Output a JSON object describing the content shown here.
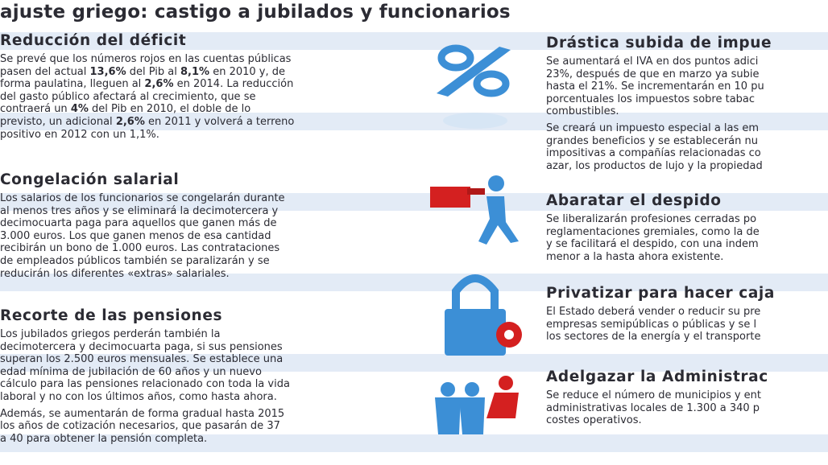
{
  "title": "ajuste griego: castigo a jubilados y funcionarios",
  "left": [
    {
      "heading": "Reducción del déficit",
      "paragraphs": [
        [
          [
            "Se prevé que los números rojos en las cuentas públicas"
          ],
          [
            "pasen del actual ",
            {
              "bold": "13,6%"
            },
            " del Pib al ",
            {
              "bold": "8,1%"
            },
            " en 2010 y, de"
          ],
          [
            "forma paulatina, lleguen al ",
            {
              "bold": "2,6%"
            },
            " en 2014. La reducción"
          ],
          [
            "del gasto público afectará al crecimiento, que se"
          ],
          [
            "contraerá un ",
            {
              "bold": "4%"
            },
            " del Pib en 2010, el doble de lo"
          ],
          [
            "previsto, un adicional ",
            {
              "bold": "2,6%"
            },
            " en 2011 y volverá a terreno"
          ],
          [
            "positivo en 2012 con un 1,1%."
          ]
        ]
      ]
    },
    {
      "heading": "Congelación salarial",
      "paragraphs": [
        [
          [
            "Los salarios de los funcionarios se congelarán durante"
          ],
          [
            "al menos tres años y se eliminará la decimotercera y"
          ],
          [
            "decimocuarta paga para aquellos que ganen más de"
          ],
          [
            "3.000 euros. Los que ganen menos de esa cantidad"
          ],
          [
            "recibirán un bono de 1.000 euros. Las contrataciones"
          ],
          [
            "de empleados públicos también se paralizarán y se"
          ],
          [
            "reducirán los diferentes «extras» salariales."
          ]
        ]
      ]
    },
    {
      "heading": "Recorte de las pensiones",
      "paragraphs": [
        [
          [
            "Los jubilados griegos perderán también la"
          ],
          [
            "decimotercera y decimocuarta paga, si sus pensiones"
          ],
          [
            "superan los 2.500 euros mensuales. Se establece una"
          ],
          [
            "edad mínima de jubilación de 60 años y un nuevo"
          ],
          [
            "cálculo para las pensiones relacionado con toda la vida"
          ],
          [
            "laboral y no con los últimos años, como hasta ahora."
          ]
        ],
        [
          [
            "Además, se aumentarán de forma gradual hasta 2015"
          ],
          [
            "los años de cotización necesarios, que pasarán de 37"
          ],
          [
            "a 40 para obtener la pensión completa."
          ]
        ]
      ]
    }
  ],
  "right": [
    {
      "heading": "Drástica subida de impue",
      "paragraphs": [
        [
          [
            "Se aumentará el IVA en dos puntos adici"
          ],
          [
            "23%, después de que en marzo ya subie"
          ],
          [
            "hasta el 21%. Se incrementarán en 10 pu"
          ],
          [
            "porcentuales los impuestos sobre tabac"
          ],
          [
            "combustibles."
          ]
        ],
        [
          [
            "Se creará un impuesto especial a las em"
          ],
          [
            "grandes beneficios y se establecerán nu"
          ],
          [
            "impositivas a compañías relacionadas co"
          ],
          [
            "azar, los productos de lujo y la propiedad"
          ]
        ]
      ]
    },
    {
      "heading": "Abaratar el despido",
      "paragraphs": [
        [
          [
            "Se liberalizarán profesiones cerradas po"
          ],
          [
            "reglamentaciones gremiales, como la de"
          ],
          [
            "y se facilitará el despido, con una indem"
          ],
          [
            "menor a la hasta ahora existente."
          ]
        ]
      ]
    },
    {
      "heading": "Privatizar para hacer caja",
      "paragraphs": [
        [
          [
            "El Estado deberá vender o reducir su pre"
          ],
          [
            "empresas semipúblicas o públicas y se l"
          ],
          [
            "los sectores de la energía y el transporte"
          ]
        ]
      ]
    },
    {
      "heading": "Adelgazar la Administrac",
      "paragraphs": [
        [
          [
            "Se reduce el número de municipios y ent"
          ],
          [
            "administrativas locales de 1.300 a 340 p"
          ],
          [
            "costes operativos."
          ]
        ]
      ]
    }
  ]
}
